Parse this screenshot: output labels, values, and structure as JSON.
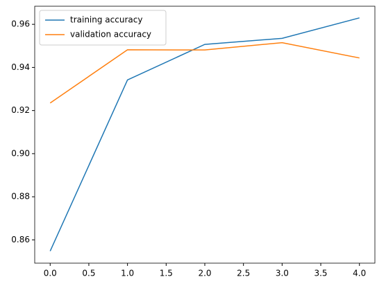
{
  "chart_data": {
    "type": "line",
    "x": [
      0,
      1,
      2,
      3,
      4
    ],
    "series": [
      {
        "name": "training accuracy",
        "color": "#1f77b4",
        "values": [
          0.8548,
          0.9342,
          0.9507,
          0.9535,
          0.963
        ]
      },
      {
        "name": "validation accuracy",
        "color": "#ff7f0e",
        "values": [
          0.9235,
          0.9482,
          0.9481,
          0.9515,
          0.9444
        ]
      }
    ],
    "xlim": [
      -0.2,
      4.2
    ],
    "xticks": [
      {
        "value": 0,
        "label": "0.0"
      },
      {
        "value": 0.5,
        "label": "0.5"
      },
      {
        "value": 1,
        "label": "1.0"
      },
      {
        "value": 1.5,
        "label": "1.5"
      },
      {
        "value": 2,
        "label": "2.0"
      },
      {
        "value": 2.5,
        "label": "2.5"
      },
      {
        "value": 3,
        "label": "3.0"
      },
      {
        "value": 3.5,
        "label": "3.5"
      },
      {
        "value": 4,
        "label": "4.0"
      }
    ],
    "ylim": [
      0.8492,
      0.9684
    ],
    "yticks": [
      0.86,
      0.88,
      {
        "value": 0.9,
        "label": "0.90"
      },
      0.92,
      0.94,
      0.96
    ],
    "legend": "upper left"
  }
}
